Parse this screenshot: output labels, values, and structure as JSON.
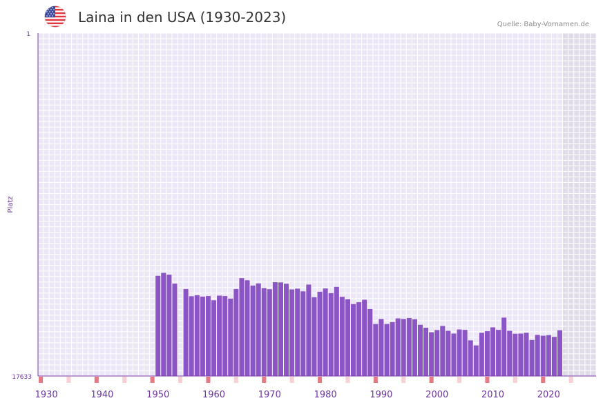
{
  "title": "Laina in den USA (1930-2023)",
  "source": "Quelle: Baby-Vornamen.de",
  "flag_icon": "usa-flag-icon",
  "colors": {
    "bar": "#8b55c6",
    "grid_bg": "#ece7f7",
    "future_bg": "#e0dcea",
    "axis": "#7b3aa8",
    "tick_text": "#6b35a0",
    "marker_strong": "#e57a85",
    "marker_light": "#f7d0d5"
  },
  "chart_data": {
    "type": "bar",
    "title": "Laina in den USA (1930-2023)",
    "xlabel": "",
    "ylabel": "Platz",
    "y_reversed": true,
    "ylim": [
      1,
      17633
    ],
    "y_ticks": [
      "1",
      "17633"
    ],
    "x_range": [
      1929,
      2028
    ],
    "x_ticks": [
      "1930",
      "1940",
      "1950",
      "1960",
      "1970",
      "1980",
      "1990",
      "2000",
      "2010",
      "2020"
    ],
    "x": [
      1950,
      1951,
      1952,
      1953,
      1955,
      1956,
      1957,
      1958,
      1959,
      1960,
      1961,
      1962,
      1963,
      1964,
      1965,
      1966,
      1967,
      1968,
      1969,
      1970,
      1971,
      1972,
      1973,
      1974,
      1975,
      1976,
      1977,
      1978,
      1979,
      1980,
      1981,
      1982,
      1983,
      1984,
      1985,
      1986,
      1987,
      1988,
      1989,
      1990,
      1991,
      1992,
      1993,
      1994,
      1995,
      1996,
      1997,
      1998,
      1999,
      2000,
      2001,
      2002,
      2003,
      2004,
      2005,
      2006,
      2007,
      2008,
      2009,
      2010,
      2011,
      2012,
      2013,
      2014,
      2015,
      2016,
      2017,
      2018,
      2019,
      2020,
      2021,
      2022
    ],
    "values": [
      12480,
      12330,
      12420,
      12880,
      13160,
      13530,
      13480,
      13550,
      13520,
      13740,
      13500,
      13520,
      13650,
      13160,
      12600,
      12710,
      12980,
      12870,
      13110,
      13170,
      12810,
      12820,
      12890,
      13180,
      13140,
      13280,
      12930,
      13580,
      13300,
      13130,
      13370,
      13050,
      13560,
      13680,
      13930,
      13840,
      13710,
      14190,
      14960,
      14700,
      14960,
      14860,
      14670,
      14700,
      14650,
      14710,
      15000,
      15150,
      15380,
      15270,
      15060,
      15310,
      15450,
      15240,
      15260,
      15800,
      16060,
      15410,
      15330,
      15130,
      15260,
      14630,
      15310,
      15460,
      15450,
      15410,
      15780,
      15520,
      15560,
      15530,
      15620,
      15280
    ],
    "highlight_years_strong": [
      1929,
      1939,
      1949,
      1959,
      1969,
      1979,
      1989,
      1999,
      2009,
      2019
    ],
    "highlight_years_light": [
      1934,
      1944,
      1954,
      1964,
      1974,
      1984,
      1994,
      2004,
      2014,
      2024
    ],
    "shaded_from_year": 2023
  }
}
